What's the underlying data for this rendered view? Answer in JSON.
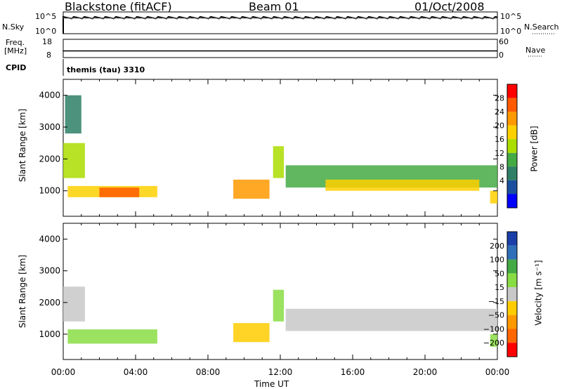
{
  "header": {
    "station": "Blackstone (fitACF)",
    "beam": "Beam 01",
    "date": "01/Oct/2008"
  },
  "panels": {
    "nsky": {
      "label": "N.Sky",
      "ytick_top": "10^5",
      "ytick_bottom": "10^0",
      "rtick_top": "10^5",
      "rtick_bottom": "10^0",
      "right_label": "N.Search"
    },
    "freq": {
      "label_line1": "Freq.",
      "label_line2": "[MHz]",
      "ytick_top": "18",
      "ytick_bottom": "8",
      "rtick_top": "60",
      "rtick_bottom": "0",
      "right_label": "Nave"
    },
    "cpid": {
      "label": "CPID",
      "value": "themis (tau) 3310"
    }
  },
  "chart_data": [
    {
      "type": "heatmap",
      "name": "power",
      "ylabel": "Slant Range [km]",
      "xlabel": "",
      "xlim": [
        0,
        24
      ],
      "ylim": [
        200,
        4500
      ],
      "yticks": [
        "1000",
        "2000",
        "3000",
        "4000"
      ],
      "xticks": [
        0,
        4,
        8,
        12,
        16,
        20,
        24
      ],
      "colorbar": {
        "label": "Power [dB]",
        "ticks": [
          "28",
          "24",
          "20",
          "16",
          "12",
          "8",
          "4"
        ],
        "colors": [
          "#ff0000",
          "#ff5a00",
          "#ff9900",
          "#ffd000",
          "#aadd00",
          "#44aa44",
          "#2e7f66",
          "#1a4fa0",
          "#0000ff"
        ]
      },
      "regions": [
        {
          "t0": 0.25,
          "t1": 5.2,
          "r0": 800,
          "r1": 1150,
          "value": 20
        },
        {
          "t0": 2.0,
          "t1": 4.2,
          "r0": 800,
          "r1": 1100,
          "value": 28
        },
        {
          "t0": 0.0,
          "t1": 1.2,
          "r0": 1400,
          "r1": 2500,
          "value": 16
        },
        {
          "t0": 0.1,
          "t1": 1.0,
          "r0": 2800,
          "r1": 4000,
          "value": 8
        },
        {
          "t0": 9.4,
          "t1": 11.4,
          "r0": 750,
          "r1": 1350,
          "value": 24
        },
        {
          "t0": 11.6,
          "t1": 12.2,
          "r0": 1400,
          "r1": 2400,
          "value": 16
        },
        {
          "t0": 12.3,
          "t1": 24.0,
          "r0": 1100,
          "r1": 1800,
          "value": 14
        },
        {
          "t0": 14.5,
          "t1": 23.0,
          "r0": 1000,
          "r1": 1350,
          "value": 22
        },
        {
          "t0": 23.6,
          "t1": 24.0,
          "r0": 600,
          "r1": 1000,
          "value": 20
        }
      ]
    },
    {
      "type": "heatmap",
      "name": "velocity",
      "ylabel": "Slant Range [km]",
      "xlabel": "Time UT",
      "xlim": [
        0,
        24
      ],
      "ylim": [
        200,
        4500
      ],
      "yticks": [
        "1000",
        "2000",
        "3000",
        "4000"
      ],
      "xtick_labels": [
        "00:00",
        "04:00",
        "08:00",
        "12:00",
        "16:00",
        "20:00",
        "00:00"
      ],
      "colorbar": {
        "label": "Velocity [m s⁻¹]",
        "ticks": [
          "200",
          "100",
          "50",
          "15",
          "−15",
          "−50",
          "−100",
          "−200"
        ],
        "colors": [
          "#1a3fa8",
          "#2f6fb8",
          "#44aa44",
          "#88dd44",
          "#c8c8c8",
          "#ffcc00",
          "#ff9900",
          "#ff6600",
          "#ff0000"
        ]
      },
      "regions": [
        {
          "t0": 0.25,
          "t1": 5.2,
          "r0": 700,
          "r1": 1150,
          "value": 60
        },
        {
          "t0": 0.0,
          "t1": 1.2,
          "r0": 1400,
          "r1": 2500,
          "value": 0
        },
        {
          "t0": 9.4,
          "t1": 11.4,
          "r0": 750,
          "r1": 1350,
          "value": -60
        },
        {
          "t0": 11.6,
          "t1": 12.2,
          "r0": 1400,
          "r1": 2400,
          "value": 60
        },
        {
          "t0": 12.3,
          "t1": 24.0,
          "r0": 1100,
          "r1": 1800,
          "value": 0
        },
        {
          "t0": 23.6,
          "t1": 24.0,
          "r0": 600,
          "r1": 1000,
          "value": 60
        }
      ]
    }
  ]
}
